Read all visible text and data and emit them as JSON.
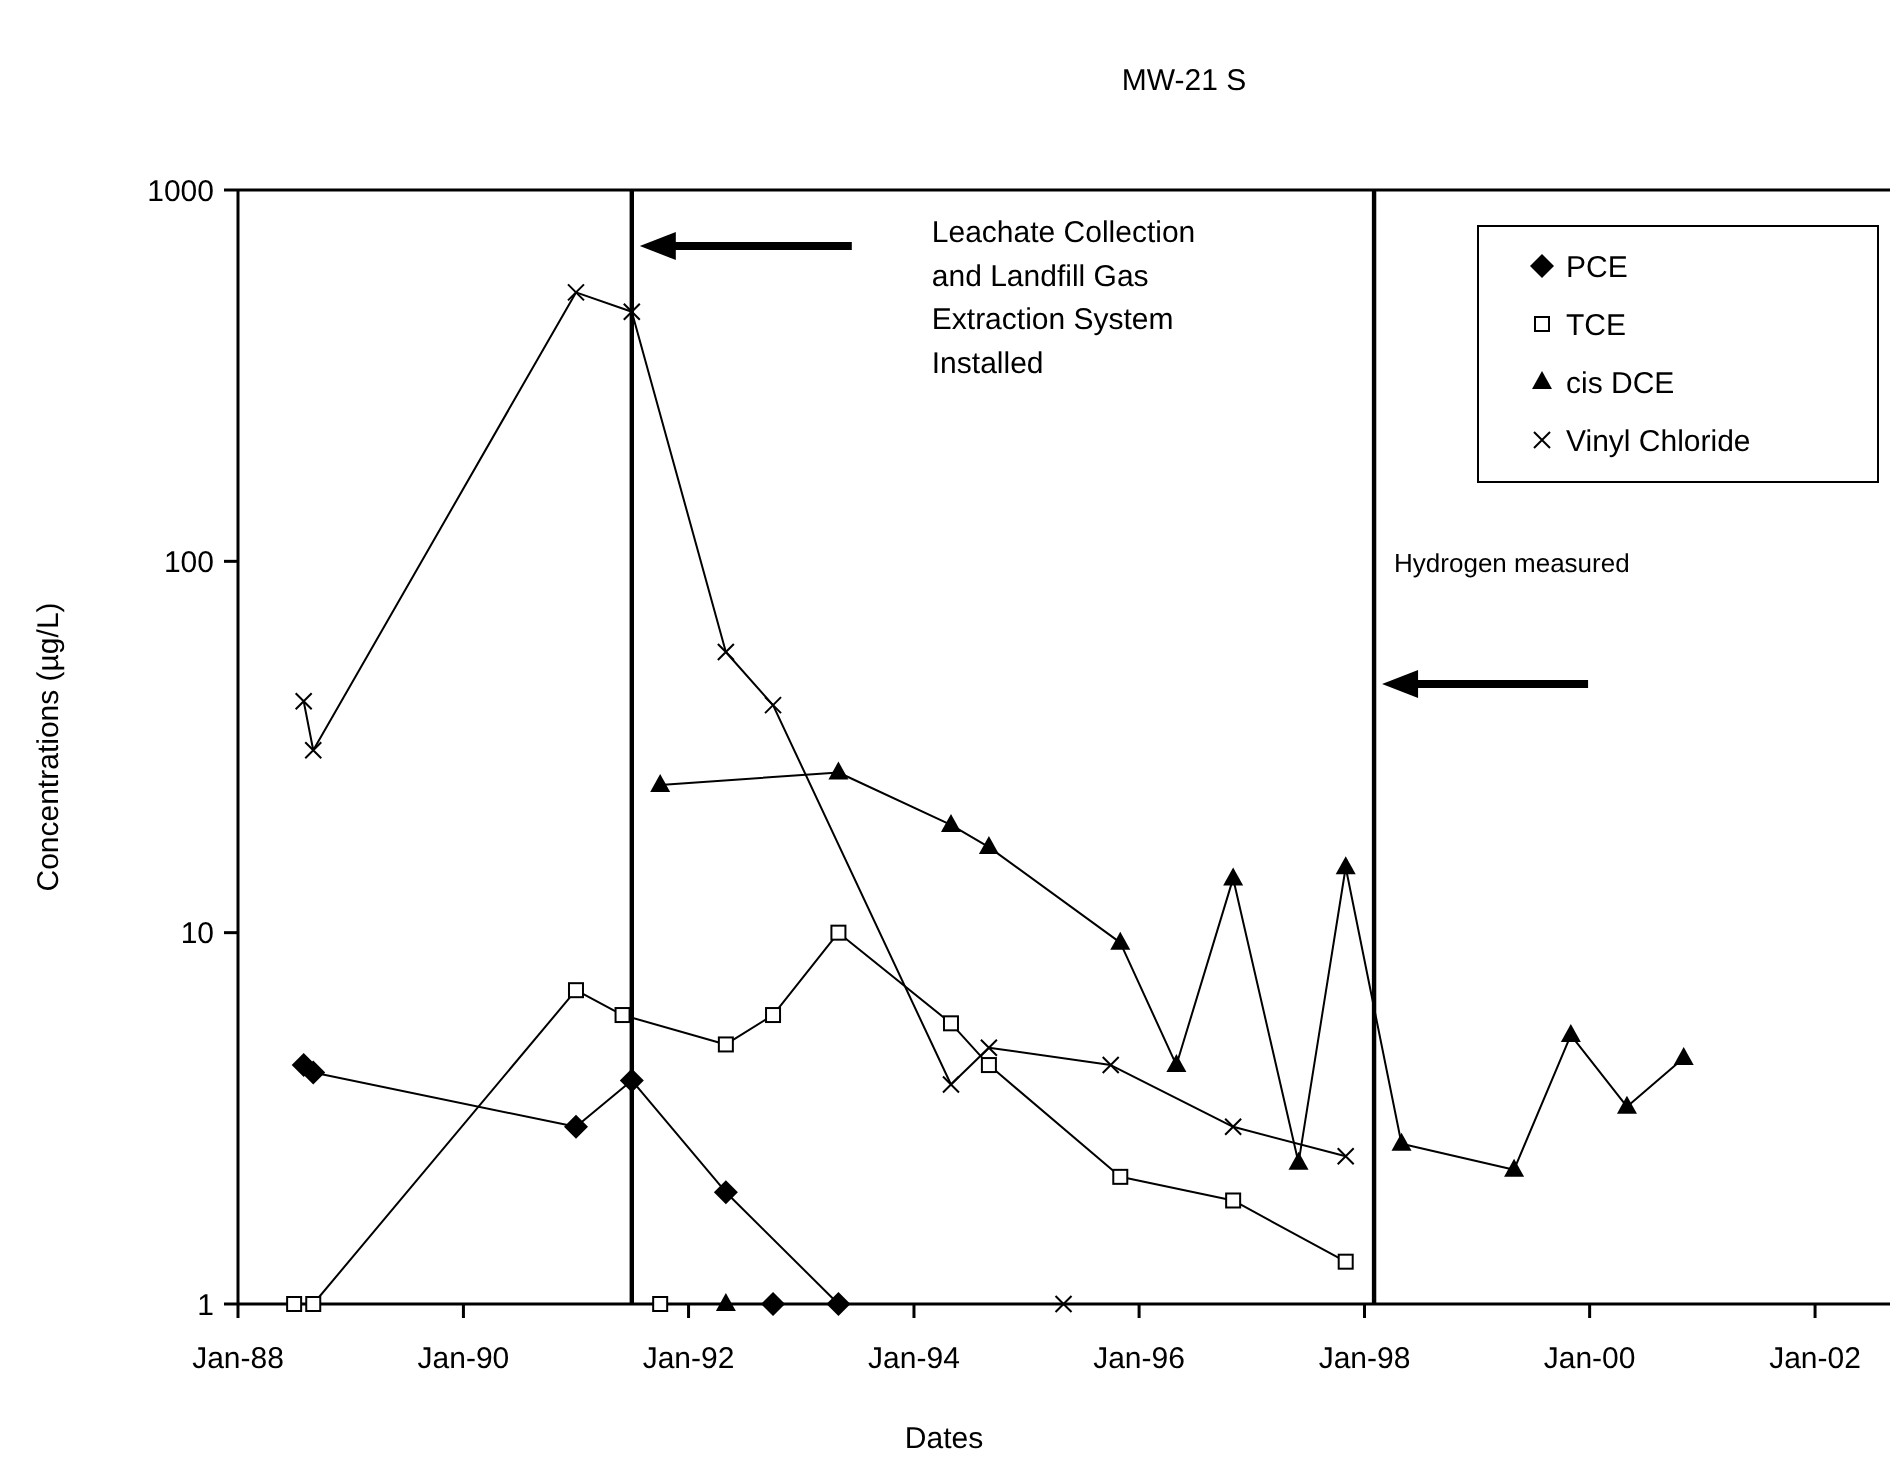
{
  "chart_data": {
    "type": "line",
    "title": "MW-21 S",
    "xlabel": "Dates",
    "ylabel": "Concentrations (µg/L)",
    "xlim": [
      "1988-01",
      "2002-09"
    ],
    "xticks": [
      {
        "value": "1988-01",
        "label": "Jan-88"
      },
      {
        "value": "1990-01",
        "label": "Jan-90"
      },
      {
        "value": "1992-01",
        "label": "Jan-92"
      },
      {
        "value": "1994-01",
        "label": "Jan-94"
      },
      {
        "value": "1996-01",
        "label": "Jan-96"
      },
      {
        "value": "1998-01",
        "label": "Jan-98"
      },
      {
        "value": "2000-01",
        "label": "Jan-00"
      },
      {
        "value": "2002-01",
        "label": "Jan-02"
      }
    ],
    "ylim": [
      1,
      1000
    ],
    "yticks": [
      1,
      10,
      100,
      1000
    ],
    "log": true,
    "grid": false,
    "legend": "top right",
    "line_style": "solid",
    "series": [
      {
        "name": "PCE",
        "color": "#000000",
        "marker": "diamond",
        "x": [
          "1988-08",
          "1988-09",
          "1991-01",
          "1991-07",
          "1992-05",
          "1993-05"
        ],
        "values": [
          4.4,
          4.2,
          3.0,
          4.0,
          2.0,
          1
        ]
      },
      {
        "name": "TCE",
        "color": "#000000",
        "marker": "square",
        "x": [
          "1988-07",
          "1988-09",
          "1991-01",
          "1991-06",
          "1992-05",
          "1992-10",
          "1993-05",
          "1994-05",
          "1994-09",
          "1995-11",
          "1996-11",
          "1997-11"
        ],
        "values": [
          1,
          1,
          7.0,
          6.0,
          5.0,
          6.0,
          10,
          5.7,
          4.4,
          2.2,
          1.9,
          1.3
        ]
      },
      {
        "name": "cis DCE",
        "color": "#000000",
        "marker": "triangle",
        "x": [
          "1991-10",
          "1993-05",
          "1994-05",
          "1994-09",
          "1995-11",
          "1996-05",
          "1996-11",
          "1997-06",
          "1997-11",
          "1998-05",
          "1999-05",
          "1999-11",
          "2000-05",
          "2000-11"
        ],
        "values": [
          25,
          27,
          19.5,
          17,
          9.4,
          4.4,
          14,
          2.4,
          15,
          2.7,
          2.3,
          5.3,
          3.4,
          4.6
        ]
      },
      {
        "name": "Vinyl Chloride",
        "color": "#000000",
        "marker": "cross",
        "x": [
          "1988-08",
          "1988-09",
          "1991-01",
          "1991-07",
          "1992-05",
          "1992-10",
          "1994-05",
          "1994-09",
          "1995-10",
          "1996-11",
          "1997-11"
        ],
        "values": [
          42,
          31,
          530,
          470,
          57,
          41,
          3.9,
          4.9,
          4.4,
          3.0,
          2.5
        ]
      },
      {
        "type": "scatter",
        "color": "#000000",
        "marker": "square",
        "x": [
          "1991-10"
        ],
        "values": [
          1
        ]
      },
      {
        "type": "scatter",
        "color": "#000000",
        "marker": "triangle",
        "x": [
          "1992-05"
        ],
        "values": [
          1
        ]
      },
      {
        "type": "scatter",
        "color": "#000000",
        "marker": "diamond",
        "x": [
          "1992-10"
        ],
        "values": [
          1
        ]
      },
      {
        "type": "scatter",
        "color": "#000000",
        "marker": "cross",
        "x": [
          "1995-05"
        ],
        "values": [
          1
        ]
      }
    ],
    "annotations": [
      "Leachate Collection and Landfill Gas Extraction System Installed"
    ],
    "ref_lines": [
      {
        "axis": "x",
        "value": "1991-07",
        "color": "#000000"
      },
      {
        "axis": "x",
        "value": "1998-02",
        "label": "Hydrogen measured",
        "color": "#000000"
      }
    ]
  }
}
